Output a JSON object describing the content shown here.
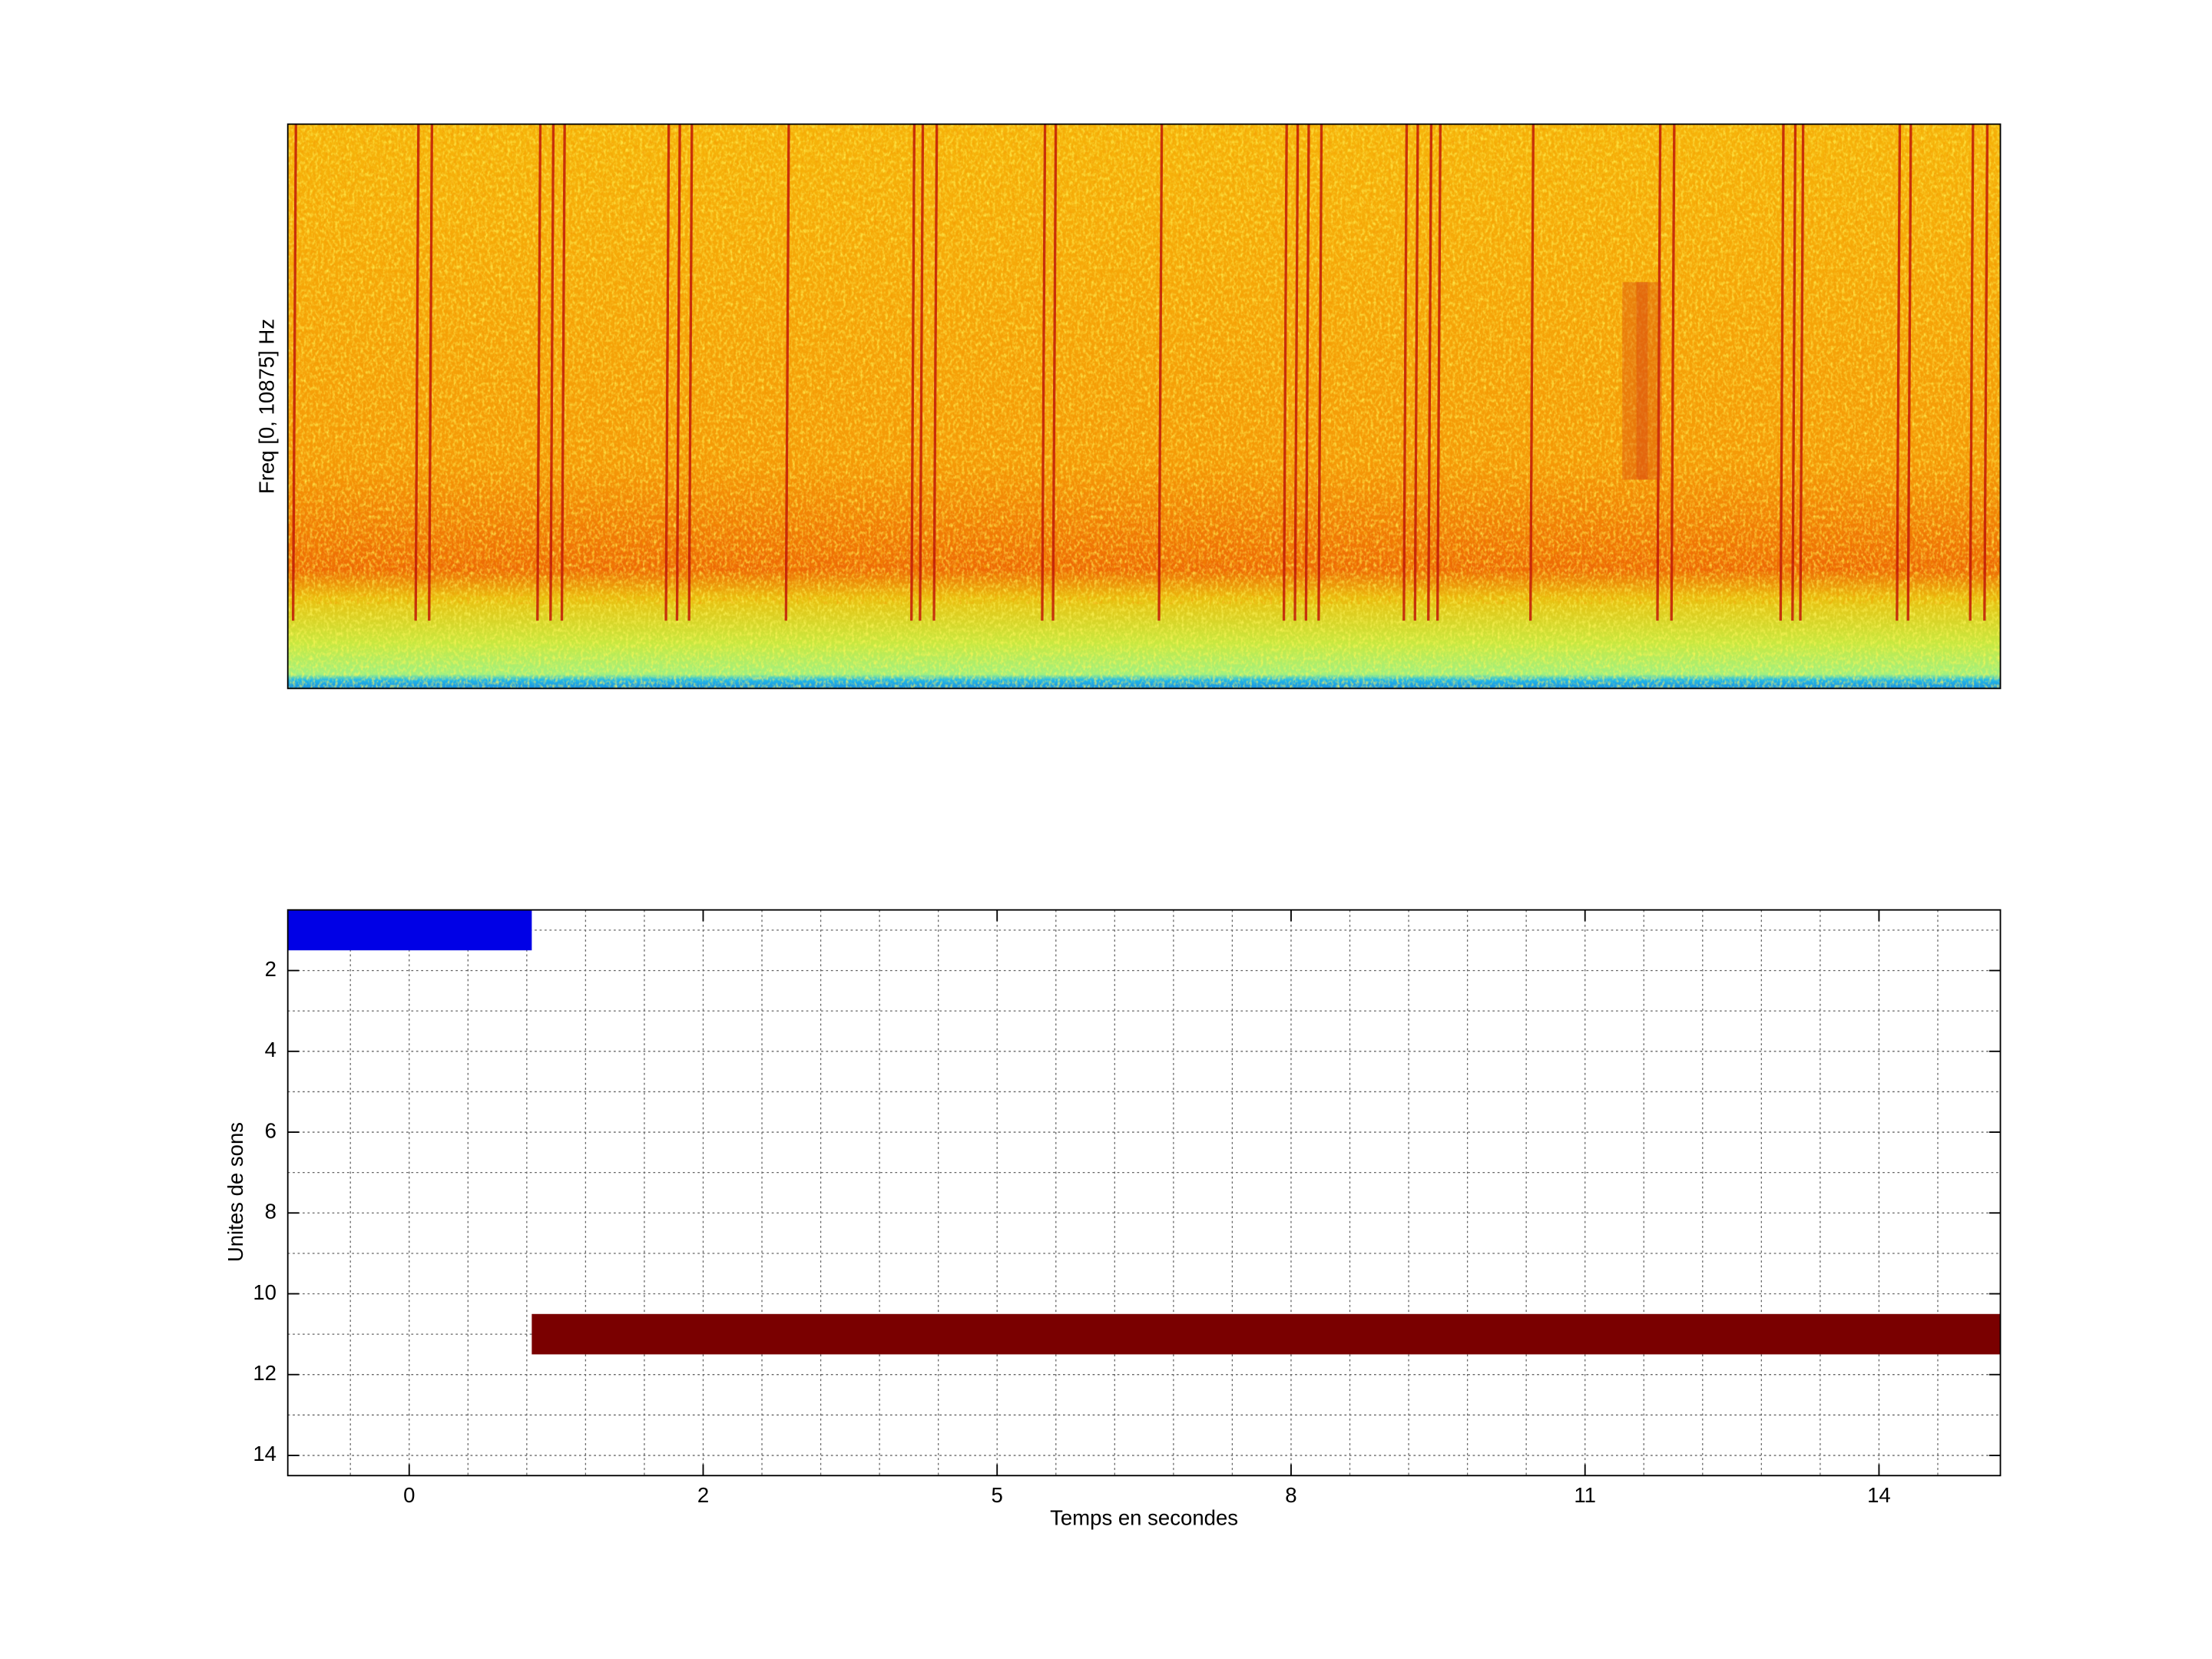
{
  "chart_data": [
    {
      "type": "spectrogram",
      "ylabel": "Freq [0, 10875] Hz"
    },
    {
      "type": "gantt",
      "xlabel": "Temps en secondes",
      "ylabel": "Unites de sons",
      "xlim": [
        0.587,
        6.413
      ],
      "xticks": [
        {
          "value": 1,
          "label": "0"
        },
        2,
        {
          "value": 3,
          "label": "5"
        },
        {
          "value": 4,
          "label": "8"
        },
        {
          "value": 5,
          "label": "11"
        },
        {
          "value": 6,
          "label": "14"
        }
      ],
      "xminorticks": [
        0.8,
        1.2,
        1.4,
        1.6,
        1.8,
        2.2,
        2.4,
        2.6,
        2.8,
        3.2,
        3.4,
        3.6,
        3.8,
        4.2,
        4.4,
        4.6,
        4.8,
        5.2,
        5.4,
        5.6,
        5.8,
        6.2
      ],
      "ylim": [
        0.5,
        14.5
      ],
      "y_reversed": true,
      "yticks": [
        2,
        4,
        6,
        8,
        10,
        12,
        14
      ],
      "yminorticks": [
        1,
        3,
        5,
        7,
        9,
        11,
        13
      ],
      "grid": true,
      "bars": [
        {
          "row": 1,
          "start": 0.587,
          "end": 1.417,
          "color": "#0000e6"
        },
        {
          "row": 11,
          "start": 1.417,
          "end": 6.413,
          "color": "#7a0000"
        }
      ]
    }
  ]
}
